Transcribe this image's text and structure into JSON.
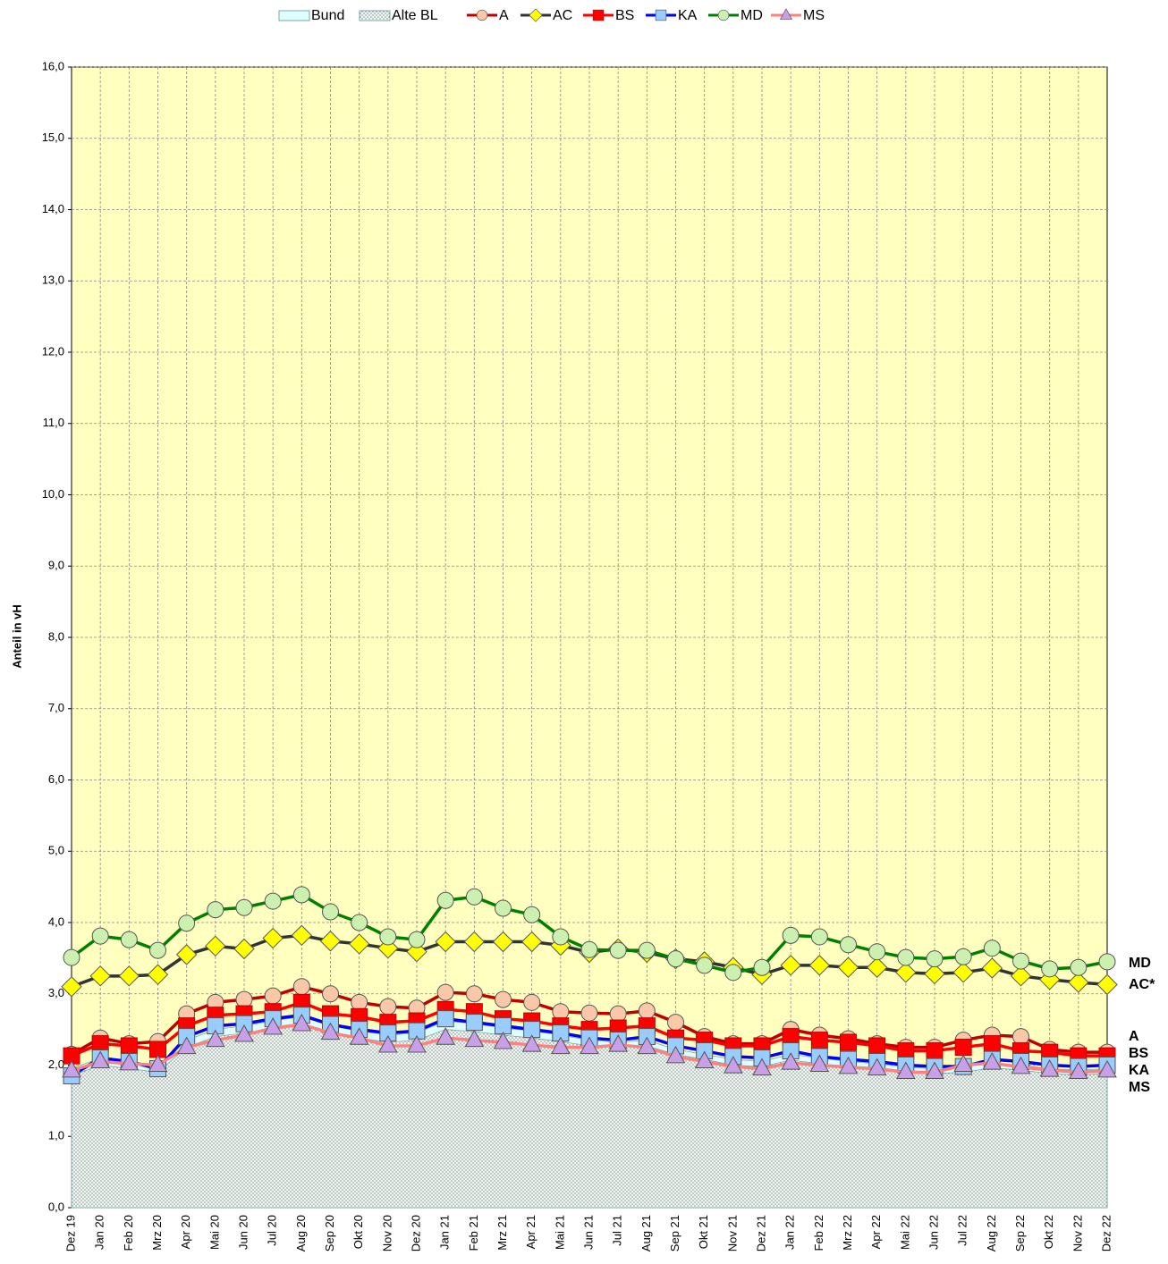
{
  "chart_data": {
    "type": "line",
    "y_label": "Anteil in vH",
    "categories": [
      "Dez 19",
      "Jan 20",
      "Feb 20",
      "Mrz 20",
      "Apr 20",
      "Mai 20",
      "Jun 20",
      "Jul 20",
      "Aug 20",
      "Sep 20",
      "Okt 20",
      "Nov 20",
      "Dez 20",
      "Jan 21",
      "Feb 21",
      "Mrz 21",
      "Apr 21",
      "Mai 21",
      "Jun 21",
      "Jul 21",
      "Aug 21",
      "Sep 21",
      "Okt 21",
      "Nov 21",
      "Dez 21",
      "Jan 22",
      "Feb 22",
      "Mrz 22",
      "Apr 22",
      "Mai 22",
      "Jun 22",
      "Jul 22",
      "Aug 22",
      "Sep 22",
      "Okt 22",
      "Nov 22",
      "Dez 22"
    ],
    "ylim": [
      0,
      16
    ],
    "yticks": [
      {
        "value": 0,
        "label": "0,0"
      },
      {
        "value": 1,
        "label": "1,0"
      },
      {
        "value": 2,
        "label": "2,0"
      },
      {
        "value": 3,
        "label": "3,0"
      },
      {
        "value": 4,
        "label": "4,0"
      },
      {
        "value": 5,
        "label": "5,0"
      },
      {
        "value": 6,
        "label": "6,0"
      },
      {
        "value": 7,
        "label": "7,0"
      },
      {
        "value": 8,
        "label": "8,0"
      },
      {
        "value": 9,
        "label": "9,0"
      },
      {
        "value": 10,
        "label": "10,0"
      },
      {
        "value": 11,
        "label": "11,0"
      },
      {
        "value": 12,
        "label": "12,0"
      },
      {
        "value": 13,
        "label": "13,0"
      },
      {
        "value": 14,
        "label": "14,0"
      },
      {
        "value": 15,
        "label": "15,0"
      },
      {
        "value": 16,
        "label": "16,0"
      }
    ],
    "grid": true,
    "background": "#ffffc0",
    "series": [
      {
        "name": "Bund",
        "kind": "area",
        "color": "#e0ffff",
        "values": [
          1.95,
          2.1,
          2.05,
          2.0,
          2.35,
          2.5,
          2.55,
          2.62,
          2.68,
          2.55,
          2.48,
          2.42,
          2.45,
          2.62,
          2.58,
          2.52,
          2.48,
          2.42,
          2.35,
          2.32,
          2.35,
          2.22,
          2.15,
          2.08,
          2.05,
          2.15,
          2.1,
          2.05,
          2.02,
          1.97,
          1.95,
          1.97,
          2.03,
          2.0,
          1.95,
          1.93,
          1.95
        ]
      },
      {
        "name": "Alte BL",
        "kind": "area",
        "pattern": "dots",
        "color": "#e8f4f0",
        "values": [
          1.85,
          2.0,
          1.95,
          1.9,
          2.25,
          2.4,
          2.45,
          2.5,
          2.55,
          2.45,
          2.38,
          2.32,
          2.35,
          2.5,
          2.47,
          2.42,
          2.38,
          2.33,
          2.27,
          2.25,
          2.27,
          2.15,
          2.08,
          2.0,
          1.98,
          2.07,
          2.02,
          1.98,
          1.95,
          1.9,
          1.88,
          1.9,
          1.96,
          1.93,
          1.88,
          1.86,
          1.88
        ]
      },
      {
        "name": "A",
        "kind": "line",
        "marker": "circle",
        "color": "#c00000",
        "marker_color": "#f8c8a8",
        "values": [
          2.15,
          2.38,
          2.3,
          2.33,
          2.72,
          2.88,
          2.92,
          2.97,
          3.1,
          3.0,
          2.88,
          2.82,
          2.8,
          3.02,
          3.0,
          2.92,
          2.88,
          2.75,
          2.73,
          2.72,
          2.76,
          2.6,
          2.4,
          2.3,
          2.3,
          2.5,
          2.42,
          2.37,
          2.3,
          2.25,
          2.25,
          2.35,
          2.42,
          2.4,
          2.22,
          2.18,
          2.18
        ]
      },
      {
        "name": "AC",
        "kind": "line",
        "marker": "diamond",
        "color": "#333333",
        "marker_color": "#ffff00",
        "values": [
          3.1,
          3.25,
          3.25,
          3.27,
          3.55,
          3.67,
          3.63,
          3.78,
          3.82,
          3.74,
          3.7,
          3.64,
          3.59,
          3.73,
          3.73,
          3.73,
          3.73,
          3.68,
          3.58,
          3.63,
          3.58,
          3.49,
          3.45,
          3.37,
          3.27,
          3.4,
          3.4,
          3.37,
          3.37,
          3.3,
          3.28,
          3.3,
          3.36,
          3.25,
          3.2,
          3.16,
          3.13
        ]
      },
      {
        "name": "BS",
        "kind": "line",
        "marker": "square",
        "color": "#ff0000",
        "marker_color": "#ff0000",
        "values": [
          2.13,
          2.3,
          2.27,
          2.22,
          2.55,
          2.7,
          2.72,
          2.75,
          2.88,
          2.72,
          2.68,
          2.6,
          2.62,
          2.78,
          2.75,
          2.65,
          2.62,
          2.55,
          2.5,
          2.52,
          2.55,
          2.38,
          2.35,
          2.27,
          2.27,
          2.4,
          2.35,
          2.32,
          2.27,
          2.2,
          2.2,
          2.25,
          2.3,
          2.2,
          2.18,
          2.13,
          2.13
        ]
      },
      {
        "name": "KA",
        "kind": "line",
        "marker": "square",
        "color": "#0000ff",
        "marker_color": "#99ccff",
        "values": [
          1.85,
          2.1,
          2.05,
          1.95,
          2.4,
          2.55,
          2.58,
          2.65,
          2.7,
          2.57,
          2.5,
          2.45,
          2.48,
          2.65,
          2.6,
          2.55,
          2.5,
          2.45,
          2.38,
          2.35,
          2.4,
          2.27,
          2.2,
          2.12,
          2.1,
          2.2,
          2.12,
          2.08,
          2.05,
          2.0,
          1.98,
          1.98,
          2.08,
          2.05,
          2.0,
          1.98,
          2.0
        ]
      },
      {
        "name": "MD",
        "kind": "line",
        "marker": "circle",
        "color": "#008000",
        "marker_color": "#ccf0b0",
        "values": [
          3.51,
          3.81,
          3.76,
          3.61,
          3.99,
          4.18,
          4.21,
          4.3,
          4.39,
          4.15,
          4.0,
          3.8,
          3.76,
          4.31,
          4.36,
          4.2,
          4.11,
          3.8,
          3.62,
          3.61,
          3.61,
          3.49,
          3.4,
          3.3,
          3.37,
          3.82,
          3.8,
          3.69,
          3.59,
          3.51,
          3.49,
          3.52,
          3.64,
          3.46,
          3.35,
          3.37,
          3.45
        ]
      },
      {
        "name": "MS",
        "kind": "line",
        "marker": "triangle",
        "color": "#ff8080",
        "marker_color": "#c8a0e8",
        "values": [
          1.92,
          2.05,
          2.02,
          2.0,
          2.25,
          2.35,
          2.42,
          2.52,
          2.57,
          2.45,
          2.38,
          2.27,
          2.27,
          2.38,
          2.35,
          2.32,
          2.28,
          2.25,
          2.25,
          2.28,
          2.25,
          2.12,
          2.05,
          1.98,
          1.95,
          2.03,
          2.0,
          1.97,
          1.95,
          1.9,
          1.9,
          2.0,
          2.03,
          1.97,
          1.93,
          1.9,
          1.92
        ]
      }
    ],
    "end_labels": [
      "MD",
      "AC*",
      "A",
      "BS",
      "KA",
      "MS"
    ]
  }
}
